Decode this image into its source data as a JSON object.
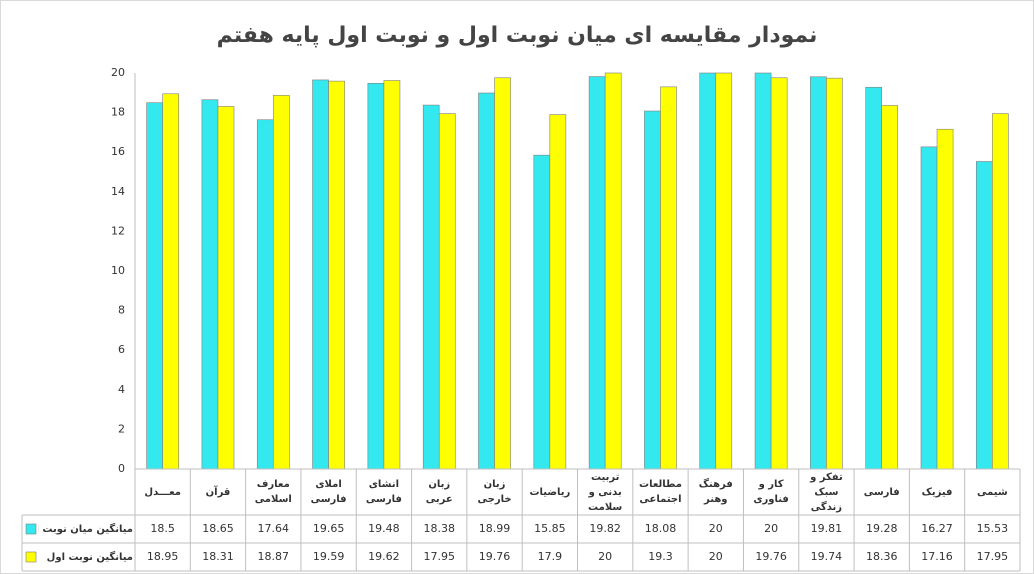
{
  "chart_data": {
    "type": "bar",
    "title": "نمودار مقایسه ای میان نوبت اول و نوبت اول پایه هفتم",
    "categories": [
      "معـــدل",
      "قرآن",
      "معارف اسلامی",
      "املای فارسی",
      "انشای فارسی",
      "زبان عربی",
      "زبان خارجی",
      "ریاضیات",
      "تربیت بدنی و سلامت",
      "مطالعات اجتماعی",
      "فرهنگ وهنر",
      "کار و فناوری",
      "تفکر و سبک زندگی",
      "فارسی",
      "فیزیک",
      "شیمی"
    ],
    "series": [
      {
        "name": "میانگین میان نوبت اول",
        "color": "#33e8ee",
        "values": [
          18.5,
          18.65,
          17.64,
          19.65,
          19.48,
          18.38,
          18.99,
          15.85,
          19.82,
          18.08,
          20,
          20,
          19.81,
          19.28,
          16.27,
          15.53
        ]
      },
      {
        "name": "میانگین نوبت اول",
        "color": "#ffff00",
        "values": [
          18.95,
          18.31,
          18.87,
          19.59,
          19.62,
          17.95,
          19.76,
          17.9,
          20,
          19.3,
          20,
          19.76,
          19.74,
          18.36,
          17.16,
          17.95
        ]
      }
    ],
    "ylim": [
      0,
      20
    ],
    "yticks": [
      0,
      2,
      4,
      6,
      8,
      10,
      12,
      14,
      16,
      18,
      20
    ],
    "grid": false
  }
}
